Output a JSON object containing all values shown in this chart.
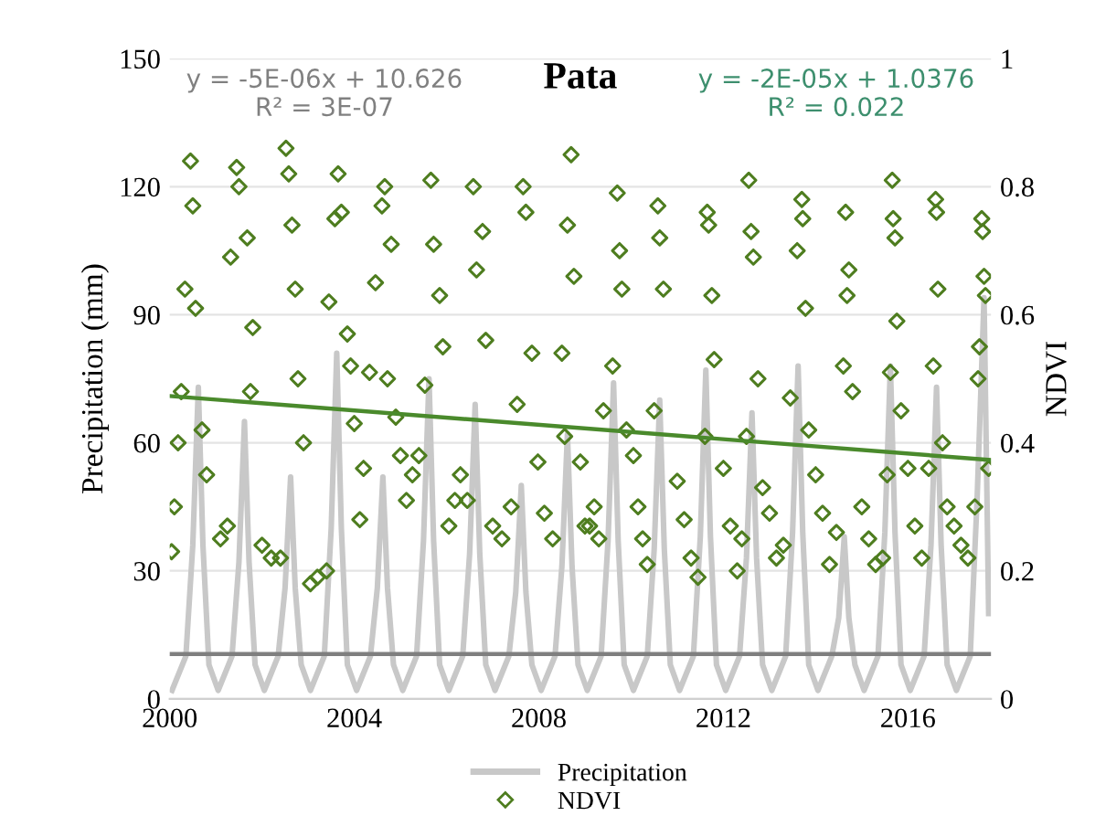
{
  "chart_data": {
    "type": "line",
    "title": "Pata",
    "ylabel": "Precipitation (mm)",
    "y2label": "NDVI",
    "xlim": [
      2000,
      2017.8
    ],
    "xticks": [
      2000,
      2004,
      2008,
      2012,
      2016
    ],
    "ylim": [
      0,
      150
    ],
    "yticks": [
      0,
      30,
      60,
      90,
      120,
      150
    ],
    "y2lim": [
      0,
      1
    ],
    "y2ticks": [
      0,
      0.2,
      0.4,
      0.6,
      0.8,
      1
    ],
    "grid": "y",
    "legend": "bottom",
    "annotations": [
      "y = -5E-06x + 10.626\nR² = 3E-07",
      "y = -2E-05x + 1.0376\nR² = 0.022"
    ],
    "series": [
      {
        "name": "Precipitation",
        "color": "#c8c8c8",
        "marker": "none",
        "x": [
          2000.05,
          2000.35,
          2000.5,
          2000.62,
          2000.72,
          2000.85,
          2001.05,
          2001.35,
          2001.5,
          2001.62,
          2001.72,
          2001.85,
          2002.05,
          2002.35,
          2002.5,
          2002.62,
          2002.72,
          2002.85,
          2003.05,
          2003.35,
          2003.5,
          2003.62,
          2003.72,
          2003.85,
          2004.05,
          2004.35,
          2004.5,
          2004.62,
          2004.72,
          2004.85,
          2005.05,
          2005.35,
          2005.5,
          2005.62,
          2005.72,
          2005.85,
          2006.05,
          2006.35,
          2006.5,
          2006.62,
          2006.72,
          2006.85,
          2007.05,
          2007.35,
          2007.5,
          2007.62,
          2007.72,
          2007.85,
          2008.05,
          2008.35,
          2008.5,
          2008.62,
          2008.72,
          2008.85,
          2009.05,
          2009.35,
          2009.5,
          2009.62,
          2009.72,
          2009.85,
          2010.05,
          2010.35,
          2010.5,
          2010.62,
          2010.72,
          2010.85,
          2011.05,
          2011.35,
          2011.5,
          2011.62,
          2011.72,
          2011.85,
          2012.05,
          2012.35,
          2012.5,
          2012.62,
          2012.72,
          2012.85,
          2013.05,
          2013.35,
          2013.5,
          2013.62,
          2013.72,
          2013.85,
          2014.05,
          2014.35,
          2014.5,
          2014.62,
          2014.72,
          2014.85,
          2015.05,
          2015.35,
          2015.5,
          2015.62,
          2015.72,
          2015.85,
          2016.05,
          2016.35,
          2016.5,
          2016.62,
          2016.72,
          2016.85,
          2017.05,
          2017.35,
          2017.5,
          2017.65,
          2017.75
        ],
        "values": [
          2,
          10,
          36,
          73,
          36,
          8,
          2,
          10,
          32,
          65,
          32,
          8,
          2,
          10,
          26,
          52,
          26,
          8,
          2,
          10,
          40,
          81,
          40,
          8,
          2,
          10,
          26,
          52,
          26,
          8,
          2,
          10,
          37,
          75,
          37,
          8,
          2,
          10,
          34,
          69,
          34,
          8,
          2,
          10,
          25,
          50,
          25,
          8,
          2,
          10,
          31,
          62,
          31,
          8,
          2,
          10,
          37,
          74,
          37,
          8,
          2,
          10,
          35,
          70,
          35,
          8,
          2,
          10,
          38,
          77,
          38,
          8,
          2,
          10,
          33,
          67,
          33,
          8,
          2,
          10,
          39,
          78,
          39,
          8,
          2,
          10,
          19,
          38,
          19,
          8,
          2,
          10,
          39,
          78,
          39,
          8,
          2,
          10,
          36,
          73,
          36,
          8,
          2,
          10,
          47,
          94,
          20
        ]
      },
      {
        "color": "#7f7f7f",
        "marker": "none",
        "x": [
          2000,
          2017.8
        ],
        "values": [
          10.5,
          10.5
        ]
      },
      {
        "name": "NDVI",
        "type": "scatter",
        "axis": "y2",
        "color": "#4e7d1f",
        "marker": "diamond",
        "x": [
          2000.04,
          2000.1,
          2000.18,
          2000.25,
          2000.33,
          2000.45,
          2000.5,
          2000.56,
          2000.7,
          2000.8,
          2001.1,
          2001.25,
          2001.32,
          2001.45,
          2001.5,
          2001.68,
          2001.75,
          2001.8,
          2002.0,
          2002.2,
          2002.4,
          2002.52,
          2002.58,
          2002.65,
          2002.72,
          2002.78,
          2002.9,
          2003.05,
          2003.2,
          2003.4,
          2003.45,
          2003.58,
          2003.65,
          2003.72,
          2003.85,
          2003.92,
          2004.0,
          2004.12,
          2004.2,
          2004.33,
          2004.46,
          2004.6,
          2004.66,
          2004.8,
          2004.72,
          2004.9,
          2005.0,
          2005.13,
          2005.26,
          2005.4,
          2005.53,
          2005.66,
          2005.72,
          2005.85,
          2005.92,
          2006.05,
          2006.18,
          2006.3,
          2006.45,
          2006.58,
          2006.65,
          2006.78,
          2006.85,
          2007.0,
          2007.2,
          2007.4,
          2007.53,
          2007.66,
          2007.72,
          2007.85,
          2007.98,
          2008.12,
          2008.3,
          2008.5,
          2008.56,
          2008.62,
          2008.7,
          2008.76,
          2008.9,
          2009.1,
          2009.3,
          2009.0,
          2009.2,
          2009.4,
          2009.6,
          2009.7,
          2009.75,
          2009.8,
          2009.9,
          2010.05,
          2010.15,
          2010.25,
          2010.35,
          2010.5,
          2010.58,
          2010.62,
          2010.7,
          2011.0,
          2011.15,
          2011.3,
          2011.45,
          2011.6,
          2011.65,
          2011.68,
          2011.75,
          2011.8,
          2012.0,
          2012.15,
          2012.3,
          2012.4,
          2012.5,
          2012.55,
          2012.6,
          2012.65,
          2012.75,
          2012.85,
          2013.0,
          2013.15,
          2013.3,
          2013.45,
          2013.6,
          2013.7,
          2013.72,
          2013.78,
          2013.85,
          2014.0,
          2014.15,
          2014.3,
          2014.45,
          2014.6,
          2014.65,
          2014.68,
          2014.72,
          2014.8,
          2015.0,
          2015.15,
          2015.3,
          2015.45,
          2015.55,
          2015.62,
          2015.66,
          2015.68,
          2015.72,
          2015.76,
          2015.85,
          2016.0,
          2016.15,
          2016.3,
          2016.45,
          2016.55,
          2016.6,
          2016.62,
          2016.65,
          2016.75,
          2016.85,
          2017.0,
          2017.15,
          2017.3,
          2017.45,
          2017.52,
          2017.55,
          2017.6,
          2017.62,
          2017.65,
          2017.68,
          2017.75
        ],
        "values": [
          0.23,
          0.3,
          0.4,
          0.48,
          0.64,
          0.84,
          0.77,
          0.61,
          0.42,
          0.35,
          0.25,
          0.27,
          0.69,
          0.83,
          0.8,
          0.72,
          0.48,
          0.58,
          0.24,
          0.22,
          0.22,
          0.86,
          0.82,
          0.74,
          0.64,
          0.5,
          0.4,
          0.18,
          0.19,
          0.2,
          0.62,
          0.75,
          0.82,
          0.76,
          0.57,
          0.52,
          0.43,
          0.28,
          0.36,
          0.51,
          0.65,
          0.77,
          0.8,
          0.71,
          0.5,
          0.44,
          0.38,
          0.31,
          0.35,
          0.38,
          0.49,
          0.81,
          0.71,
          0.63,
          0.55,
          0.27,
          0.31,
          0.35,
          0.31,
          0.8,
          0.67,
          0.73,
          0.56,
          0.27,
          0.25,
          0.3,
          0.46,
          0.8,
          0.76,
          0.54,
          0.37,
          0.29,
          0.25,
          0.54,
          0.41,
          0.74,
          0.85,
          0.66,
          0.37,
          0.27,
          0.25,
          0.27,
          0.3,
          0.45,
          0.52,
          0.79,
          0.7,
          0.64,
          0.42,
          0.38,
          0.3,
          0.25,
          0.21,
          0.45,
          0.77,
          0.72,
          0.64,
          0.34,
          0.28,
          0.22,
          0.19,
          0.41,
          0.76,
          0.74,
          0.63,
          0.53,
          0.36,
          0.27,
          0.2,
          0.25,
          0.41,
          0.81,
          0.73,
          0.69,
          0.5,
          0.33,
          0.29,
          0.22,
          0.24,
          0.47,
          0.7,
          0.78,
          0.75,
          0.61,
          0.42,
          0.35,
          0.29,
          0.21,
          0.26,
          0.52,
          0.76,
          0.63,
          0.67,
          0.48,
          0.3,
          0.25,
          0.21,
          0.22,
          0.35,
          0.51,
          0.81,
          0.75,
          0.72,
          0.59,
          0.45,
          0.36,
          0.27,
          0.22,
          0.36,
          0.52,
          0.78,
          0.76,
          0.64,
          0.4,
          0.3,
          0.27,
          0.24,
          0.22,
          0.3,
          0.5,
          0.55,
          0.75,
          0.73,
          0.66,
          0.63,
          0.36
        ]
      },
      {
        "axis": "y2",
        "color": "#4a8a2c",
        "marker": "none",
        "x": [
          2000,
          2017.8
        ],
        "values": [
          0.473,
          0.373
        ]
      }
    ]
  }
}
